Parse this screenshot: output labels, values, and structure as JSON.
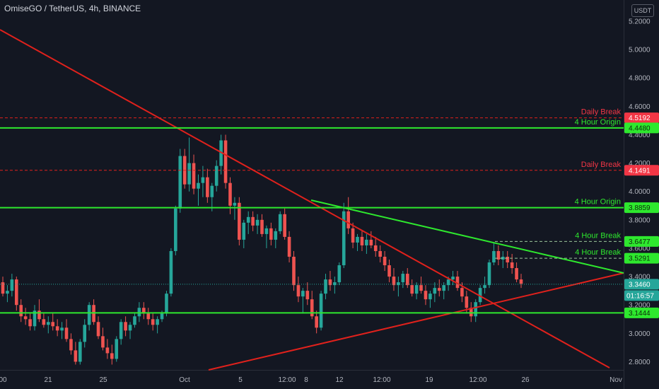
{
  "header": {
    "title": "OmiseGO / TetherUS, 4h, BINANCE"
  },
  "toolbar": {
    "currency_button": "USDT"
  },
  "colors": {
    "background": "#131722",
    "up": "#26a69a",
    "down": "#ef5350",
    "green_line": "#2ee82e",
    "red_line": "#e0211c",
    "axis_text": "#b2b5be"
  },
  "chart_data": {
    "type": "candlestick",
    "title": "OmiseGO / TetherUS, 4h, BINANCE",
    "ylim": [
      2.75,
      5.25
    ],
    "y_ticks": [
      "5.2000",
      "5.0000",
      "4.8000",
      "4.6000",
      "4.4000",
      "4.2000",
      "4.0000",
      "3.8000",
      "3.6000",
      "3.4000",
      "3.2000",
      "3.0000",
      "2.8000"
    ],
    "x_ticks": [
      "00",
      "21",
      "25",
      "Oct",
      "5",
      "12:00",
      "8",
      "12",
      "12:00",
      "19",
      "12:00",
      "26",
      "Nov"
    ],
    "grid": false,
    "horizontal_levels": [
      {
        "price": 4.5192,
        "label": "Daily Break",
        "pill": "4.5192",
        "color": "red",
        "style": "dashed"
      },
      {
        "price": 4.448,
        "label": "4 Hour Origin",
        "pill": "4.4480",
        "color": "green",
        "style": "solid"
      },
      {
        "price": 4.1491,
        "label": "Daily Break",
        "pill": "4.1491",
        "color": "red",
        "style": "dashed"
      },
      {
        "price": 3.8859,
        "label": "4 Hour Origin",
        "pill": "3.8859",
        "color": "green",
        "style": "solid"
      },
      {
        "price": 3.6477,
        "label": "4 Hour Break",
        "pill": "3.6477",
        "color": "green",
        "style": "dashed"
      },
      {
        "price": 3.5291,
        "label": "4 Hour Break",
        "pill": "3.5291",
        "color": "green",
        "style": "dashed"
      },
      {
        "price": 3.1444,
        "label": "",
        "pill": "3.1444",
        "color": "green",
        "style": "solid"
      }
    ],
    "current_price": "3.3460",
    "countdown": "01:16:57",
    "candles": [
      [
        3.36,
        3.4,
        3.26,
        3.28
      ],
      [
        3.28,
        3.34,
        3.22,
        3.3
      ],
      [
        3.3,
        3.42,
        3.26,
        3.38
      ],
      [
        3.38,
        3.4,
        3.16,
        3.2
      ],
      [
        3.2,
        3.24,
        3.08,
        3.12
      ],
      [
        3.12,
        3.18,
        3.06,
        3.1
      ],
      [
        3.1,
        3.14,
        3.02,
        3.05
      ],
      [
        3.05,
        3.2,
        3.02,
        3.16
      ],
      [
        3.16,
        3.24,
        3.08,
        3.1
      ],
      [
        3.1,
        3.14,
        3.04,
        3.06
      ],
      [
        3.06,
        3.12,
        3.0,
        3.08
      ],
      [
        3.08,
        3.14,
        3.02,
        3.05
      ],
      [
        3.05,
        3.1,
        2.98,
        3.02
      ],
      [
        3.02,
        3.08,
        2.96,
        3.04
      ],
      [
        3.04,
        3.1,
        2.94,
        2.96
      ],
      [
        2.96,
        3.0,
        2.85,
        2.88
      ],
      [
        2.88,
        2.94,
        2.78,
        2.8
      ],
      [
        2.8,
        2.96,
        2.78,
        2.94
      ],
      [
        2.94,
        3.1,
        2.9,
        3.06
      ],
      [
        3.06,
        3.22,
        3.02,
        3.2
      ],
      [
        3.2,
        3.24,
        3.06,
        3.08
      ],
      [
        3.08,
        3.12,
        2.96,
        2.98
      ],
      [
        2.98,
        3.04,
        2.88,
        2.9
      ],
      [
        2.9,
        2.96,
        2.82,
        2.86
      ],
      [
        2.86,
        2.92,
        2.78,
        2.82
      ],
      [
        2.82,
        2.98,
        2.8,
        2.96
      ],
      [
        2.96,
        3.1,
        2.92,
        3.08
      ],
      [
        3.08,
        3.12,
        2.98,
        3.02
      ],
      [
        3.02,
        3.08,
        2.96,
        3.06
      ],
      [
        3.06,
        3.14,
        3.04,
        3.12
      ],
      [
        3.12,
        3.22,
        3.08,
        3.18
      ],
      [
        3.18,
        3.22,
        3.1,
        3.14
      ],
      [
        3.14,
        3.18,
        3.06,
        3.1
      ],
      [
        3.1,
        3.14,
        3.02,
        3.06
      ],
      [
        3.06,
        3.12,
        3.0,
        3.1
      ],
      [
        3.1,
        3.16,
        3.08,
        3.14
      ],
      [
        3.14,
        3.3,
        3.12,
        3.28
      ],
      [
        3.28,
        3.6,
        3.26,
        3.58
      ],
      [
        3.58,
        3.9,
        3.55,
        3.88
      ],
      [
        3.88,
        4.3,
        3.85,
        4.25
      ],
      [
        4.25,
        4.3,
        4.02,
        4.05
      ],
      [
        4.05,
        4.38,
        4.0,
        4.2
      ],
      [
        4.2,
        4.26,
        3.98,
        4.02
      ],
      [
        4.02,
        4.12,
        3.9,
        4.06
      ],
      [
        4.06,
        4.18,
        3.96,
        4.1
      ],
      [
        4.1,
        4.16,
        3.92,
        3.96
      ],
      [
        3.96,
        4.06,
        3.86,
        4.04
      ],
      [
        4.04,
        4.22,
        4.0,
        4.18
      ],
      [
        4.18,
        4.4,
        4.12,
        4.36
      ],
      [
        4.36,
        4.4,
        4.02,
        4.06
      ],
      [
        4.06,
        4.1,
        3.84,
        3.9
      ],
      [
        3.9,
        3.96,
        3.8,
        3.92
      ],
      [
        3.92,
        3.96,
        3.62,
        3.66
      ],
      [
        3.66,
        3.8,
        3.6,
        3.78
      ],
      [
        3.78,
        3.86,
        3.7,
        3.82
      ],
      [
        3.82,
        3.86,
        3.72,
        3.76
      ],
      [
        3.76,
        3.84,
        3.7,
        3.8
      ],
      [
        3.8,
        3.84,
        3.68,
        3.7
      ],
      [
        3.7,
        3.76,
        3.6,
        3.74
      ],
      [
        3.74,
        3.78,
        3.62,
        3.66
      ],
      [
        3.66,
        3.74,
        3.6,
        3.72
      ],
      [
        3.72,
        3.86,
        3.7,
        3.84
      ],
      [
        3.84,
        3.88,
        3.66,
        3.68
      ],
      [
        3.68,
        3.72,
        3.5,
        3.54
      ],
      [
        3.54,
        3.58,
        3.3,
        3.34
      ],
      [
        3.34,
        3.4,
        3.22,
        3.26
      ],
      [
        3.26,
        3.32,
        3.14,
        3.3
      ],
      [
        3.3,
        3.36,
        3.2,
        3.24
      ],
      [
        3.24,
        3.3,
        3.1,
        3.12
      ],
      [
        3.12,
        3.16,
        3.0,
        3.04
      ],
      [
        3.04,
        3.3,
        3.02,
        3.28
      ],
      [
        3.28,
        3.42,
        3.24,
        3.38
      ],
      [
        3.38,
        3.44,
        3.3,
        3.34
      ],
      [
        3.34,
        3.4,
        3.28,
        3.36
      ],
      [
        3.36,
        3.5,
        3.34,
        3.48
      ],
      [
        3.48,
        3.92,
        3.46,
        3.86
      ],
      [
        3.86,
        3.96,
        3.7,
        3.74
      ],
      [
        3.74,
        3.78,
        3.6,
        3.64
      ],
      [
        3.64,
        3.7,
        3.58,
        3.68
      ],
      [
        3.68,
        3.72,
        3.58,
        3.62
      ],
      [
        3.62,
        3.7,
        3.56,
        3.66
      ],
      [
        3.66,
        3.72,
        3.6,
        3.62
      ],
      [
        3.62,
        3.68,
        3.54,
        3.58
      ],
      [
        3.58,
        3.62,
        3.5,
        3.54
      ],
      [
        3.54,
        3.58,
        3.44,
        3.48
      ],
      [
        3.48,
        3.52,
        3.36,
        3.4
      ],
      [
        3.4,
        3.46,
        3.3,
        3.34
      ],
      [
        3.34,
        3.4,
        3.26,
        3.36
      ],
      [
        3.36,
        3.44,
        3.32,
        3.42
      ],
      [
        3.42,
        3.46,
        3.32,
        3.34
      ],
      [
        3.34,
        3.38,
        3.26,
        3.28
      ],
      [
        3.28,
        3.36,
        3.24,
        3.34
      ],
      [
        3.34,
        3.4,
        3.28,
        3.3
      ],
      [
        3.3,
        3.34,
        3.2,
        3.24
      ],
      [
        3.24,
        3.3,
        3.18,
        3.28
      ],
      [
        3.28,
        3.36,
        3.22,
        3.32
      ],
      [
        3.32,
        3.38,
        3.26,
        3.3
      ],
      [
        3.3,
        3.36,
        3.24,
        3.34
      ],
      [
        3.34,
        3.4,
        3.3,
        3.38
      ],
      [
        3.38,
        3.44,
        3.34,
        3.4
      ],
      [
        3.4,
        3.44,
        3.3,
        3.32
      ],
      [
        3.32,
        3.36,
        3.22,
        3.26
      ],
      [
        3.26,
        3.3,
        3.14,
        3.18
      ],
      [
        3.18,
        3.22,
        3.08,
        3.12
      ],
      [
        3.12,
        3.24,
        3.08,
        3.22
      ],
      [
        3.22,
        3.34,
        3.2,
        3.32
      ],
      [
        3.32,
        3.4,
        3.28,
        3.34
      ],
      [
        3.34,
        3.52,
        3.32,
        3.5
      ],
      [
        3.5,
        3.64,
        3.48,
        3.58
      ],
      [
        3.58,
        3.62,
        3.48,
        3.52
      ],
      [
        3.52,
        3.58,
        3.46,
        3.54
      ],
      [
        3.54,
        3.58,
        3.46,
        3.5
      ],
      [
        3.5,
        3.56,
        3.42,
        3.46
      ],
      [
        3.46,
        3.5,
        3.36,
        3.38
      ],
      [
        3.38,
        3.42,
        3.32,
        3.35
      ]
    ]
  }
}
